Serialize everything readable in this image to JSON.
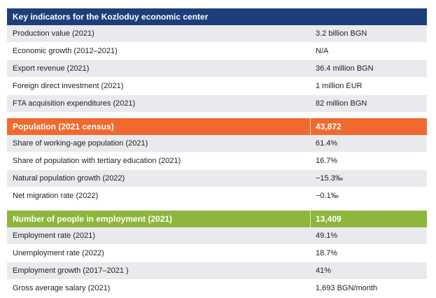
{
  "title": "Key indicators for the Kozloduy economic center",
  "colors": {
    "navy": "#1d3e7a",
    "orange": "#f06a2f",
    "green": "#8db63c",
    "row_alt": "#e9eaee"
  },
  "section1": {
    "rows": [
      {
        "label": "Production value (2021)",
        "value": "3.2 billion BGN"
      },
      {
        "label": "Economic growth (2012–2021)",
        "value": "N/A"
      },
      {
        "label": "Export revenue (2021)",
        "value": "36.4 million BGN"
      },
      {
        "label": "Foreign direct investment (2021)",
        "value": "1 million EUR"
      },
      {
        "label": "FTA acquisition expenditures (2021)",
        "value": "82 million BGN"
      }
    ]
  },
  "section2": {
    "header": {
      "label": "Population (2021 census)",
      "value": "43,872"
    },
    "rows": [
      {
        "label": "Share of working-age population (2021)",
        "value": "61.4%"
      },
      {
        "label": "Share of population with tertiary education (2021)",
        "value": "16.7%"
      },
      {
        "label": "Natural population growth (2022)",
        "value": "−15.3‰"
      },
      {
        "label": "Net migration rate (2022)",
        "value": "−0.1‰"
      }
    ]
  },
  "section3": {
    "header": {
      "label": "Number of people in employment (2021)",
      "value": "13,409"
    },
    "rows": [
      {
        "label": "Employment rate (2021)",
        "value": "49.1%"
      },
      {
        "label": "Unemployment rate (2022)",
        "value": "18.7%"
      },
      {
        "label": "Employment growth (2017–2021 )",
        "value": "41%"
      },
      {
        "label": "Gross average salary (2021)",
        "value": "1,693 BGN/month"
      }
    ]
  }
}
